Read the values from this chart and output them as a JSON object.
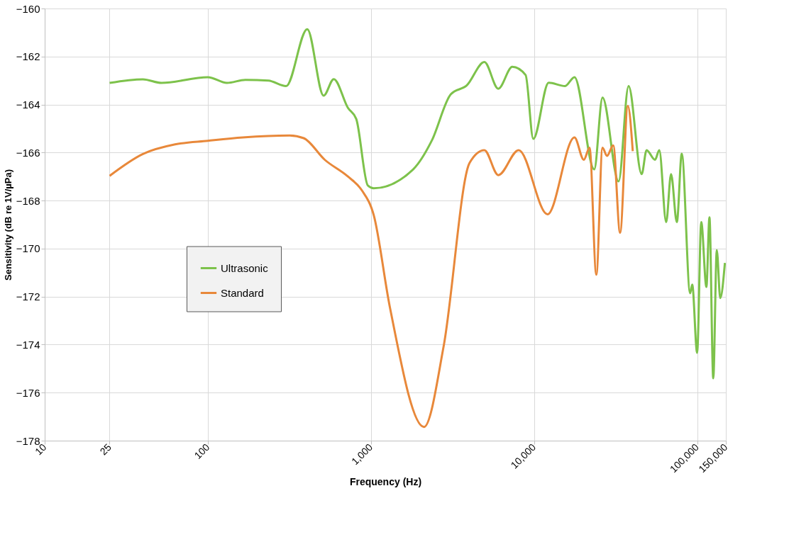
{
  "chart_data": {
    "type": "line",
    "xlabel": "Frequency (Hz)",
    "ylabel": "Sensitivity (dB re 1V/µPa)",
    "log": "x",
    "grid": true,
    "legend": "left",
    "line_style": "solid",
    "marker": "none",
    "xlim": [
      10,
      150000
    ],
    "ylim": [
      -178,
      -160
    ],
    "xticks": [
      10,
      25,
      100,
      {
        "value": 1000,
        "label": "1,000"
      },
      {
        "value": 10000,
        "label": "10,000"
      },
      {
        "value": 100000,
        "label": "100,000"
      },
      {
        "value": 150000,
        "label": "150,000"
      }
    ],
    "yticks": [
      -178,
      -176,
      -174,
      -172,
      -170,
      -168,
      -166,
      -164,
      -162,
      -160
    ],
    "series": [
      {
        "name": "Ultrasonic",
        "color": "#7dc24b",
        "x": [
          25,
          40,
          52,
          100,
          131,
          170,
          235,
          302,
          407,
          513,
          592,
          723,
          813,
          957,
          1040,
          1815,
          2362,
          3090,
          3875,
          4960,
          6040,
          7360,
          8880,
          9900,
          12300,
          15500,
          17700,
          23400,
          26300,
          33000,
          38000,
          45700,
          49000,
          55200,
          58600,
          64600,
          69200,
          75100,
          80500,
          90600,
          93300,
          100000,
          106000,
          114000,
          119000,
          125600,
          132000,
          138600,
          148000
        ],
        "values": [
          -163.1,
          -162.95,
          -163.1,
          -162.86,
          -163.1,
          -162.97,
          -163.0,
          -163.23,
          -160.86,
          -163.63,
          -162.94,
          -164.14,
          -164.6,
          -167.37,
          -167.49,
          -166.7,
          -165.5,
          -163.57,
          -163.2,
          -162.23,
          -163.34,
          -162.43,
          -162.77,
          -165.43,
          -163.09,
          -163.23,
          -162.86,
          -166.7,
          -163.71,
          -167.2,
          -163.23,
          -166.9,
          -165.9,
          -166.3,
          -165.9,
          -168.9,
          -166.9,
          -168.9,
          -166.05,
          -171.86,
          -171.5,
          -174.34,
          -168.9,
          -171.6,
          -168.7,
          -175.4,
          -170.06,
          -172.06,
          -170.6
        ]
      },
      {
        "name": "Standard",
        "color": "#e8883a",
        "x": [
          25,
          40,
          63,
          100,
          164,
          318,
          387,
          521,
          723,
          879,
          1040,
          1306,
          2117,
          2793,
          4025,
          4960,
          6040,
          8050,
          12100,
          17700,
          20200,
          21900,
          24100,
          26300,
          28000,
          30600,
          33700,
          37600,
          40300
        ],
        "values": [
          -166.97,
          -166.06,
          -165.66,
          -165.51,
          -165.37,
          -165.29,
          -165.4,
          -166.3,
          -167.0,
          -167.57,
          -168.6,
          -172.43,
          -177.43,
          -174.06,
          -166.43,
          -165.9,
          -166.94,
          -165.9,
          -168.57,
          -165.37,
          -166.3,
          -165.8,
          -171.09,
          -165.8,
          -166.14,
          -165.7,
          -169.34,
          -164.06,
          -165.94
        ]
      }
    ]
  }
}
